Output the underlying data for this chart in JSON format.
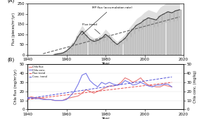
{
  "title_A": "(A)",
  "title_B": "(B)",
  "xlim": [
    1940,
    2020
  ],
  "ylim_A": [
    0,
    250
  ],
  "ylim_B": [
    0,
    50
  ],
  "ylim_B2": [
    0,
    50
  ],
  "xlabel": "Year",
  "ylabel_A": "Flux (pieces/m²/yr)",
  "ylabel_B": "Chla flux (mg/m²/yr)",
  "ylabel_B2": "Chla conc. (mg/kg)",
  "xticks": [
    1940,
    1960,
    1980,
    2000,
    2020
  ],
  "yticks_A": [
    0,
    50,
    100,
    150,
    200,
    250
  ],
  "yticks_B": [
    0,
    10,
    20,
    30,
    40,
    50
  ],
  "background_color": "#ffffff",
  "bar_color": "#c8c8c8",
  "bar_edge_color": "#888888",
  "shade_color": "#d8d8d8",
  "trend_color": "#666666",
  "mp_line_color": "#333333",
  "chla_flux_color": "#e87878",
  "chla_conc_color": "#7878e8",
  "flux_trend_color": "#e85050",
  "conc_trend_color": "#5050d8",
  "annotation_MP": "MP flux (accumulation rate)",
  "annotation_trend": "Flux trend",
  "legend_B": [
    "Chla flux",
    "Chla conc.",
    "Flux trend",
    "Conc. trend"
  ],
  "years_bars": [
    1954,
    1956,
    1958,
    1960,
    1962,
    1964,
    1966,
    1968,
    1970,
    1972,
    1974,
    1976,
    1978,
    1980,
    1982,
    1984,
    1986,
    1988,
    1990,
    1992,
    1994,
    1996,
    1998,
    2000,
    2002,
    2004,
    2006,
    2008,
    2010,
    2012,
    2014,
    2016,
    2018
  ],
  "bar_heights": [
    2,
    5,
    8,
    18,
    35,
    55,
    90,
    115,
    95,
    75,
    65,
    70,
    80,
    100,
    85,
    65,
    50,
    65,
    80,
    105,
    125,
    145,
    155,
    170,
    180,
    175,
    170,
    190,
    200,
    210,
    205,
    215,
    220
  ],
  "bar_errors": [
    2,
    4,
    6,
    10,
    15,
    18,
    22,
    28,
    22,
    18,
    16,
    16,
    20,
    25,
    20,
    16,
    14,
    16,
    20,
    25,
    28,
    32,
    35,
    38,
    40,
    38,
    36,
    42,
    45,
    48,
    45,
    48,
    50
  ],
  "mp_line_x": [
    1954,
    1956,
    1958,
    1960,
    1962,
    1964,
    1966,
    1968,
    1970,
    1972,
    1974,
    1976,
    1978,
    1980,
    1982,
    1984,
    1986,
    1988,
    1990,
    1992,
    1994,
    1996,
    1998,
    2000,
    2002,
    2004,
    2006,
    2008,
    2010,
    2012,
    2014,
    2016,
    2018
  ],
  "mp_line_y": [
    2,
    5,
    8,
    18,
    35,
    55,
    90,
    115,
    95,
    75,
    65,
    70,
    80,
    100,
    85,
    65,
    50,
    65,
    80,
    105,
    125,
    145,
    155,
    170,
    180,
    175,
    170,
    190,
    200,
    210,
    205,
    215,
    220
  ],
  "trend_x": [
    1948,
    2018
  ],
  "trend_y": [
    5,
    185
  ],
  "chla_flux_x": [
    1940,
    1942,
    1944,
    1946,
    1948,
    1950,
    1952,
    1954,
    1956,
    1958,
    1960,
    1962,
    1964,
    1966,
    1968,
    1970,
    1972,
    1974,
    1976,
    1978,
    1980,
    1982,
    1984,
    1986,
    1988,
    1990,
    1992,
    1994,
    1996,
    1998,
    2000,
    2002,
    2004,
    2006,
    2008,
    2010,
    2012,
    2014
  ],
  "chla_flux_y": [
    13,
    14,
    13,
    13,
    12,
    11,
    11,
    10,
    10,
    10,
    12,
    13,
    14,
    15,
    18,
    22,
    20,
    18,
    20,
    22,
    24,
    26,
    26,
    27,
    30,
    35,
    33,
    30,
    32,
    35,
    30,
    27,
    26,
    25,
    25,
    27,
    26,
    25
  ],
  "chla_conc_x": [
    1940,
    1942,
    1944,
    1946,
    1948,
    1950,
    1952,
    1954,
    1956,
    1958,
    1960,
    1962,
    1964,
    1966,
    1968,
    1970,
    1972,
    1974,
    1976,
    1978,
    1980,
    1982,
    1984,
    1986,
    1988,
    1990,
    1992,
    1994,
    1996,
    1998,
    2000,
    2002,
    2004,
    2006,
    2008,
    2010,
    2012,
    2014
  ],
  "chla_conc_y": [
    13,
    13,
    12,
    12,
    11,
    11,
    11,
    10,
    10,
    10,
    11,
    15,
    20,
    28,
    38,
    40,
    32,
    28,
    25,
    30,
    28,
    30,
    28,
    27,
    28,
    32,
    30,
    27,
    28,
    30,
    28,
    26,
    25,
    27,
    27,
    28,
    28,
    25
  ],
  "flux_trend_x": [
    1940,
    2014
  ],
  "flux_trend_y": [
    11,
    30
  ],
  "conc_trend_x": [
    1940,
    2014
  ],
  "conc_trend_y": [
    12,
    36
  ]
}
